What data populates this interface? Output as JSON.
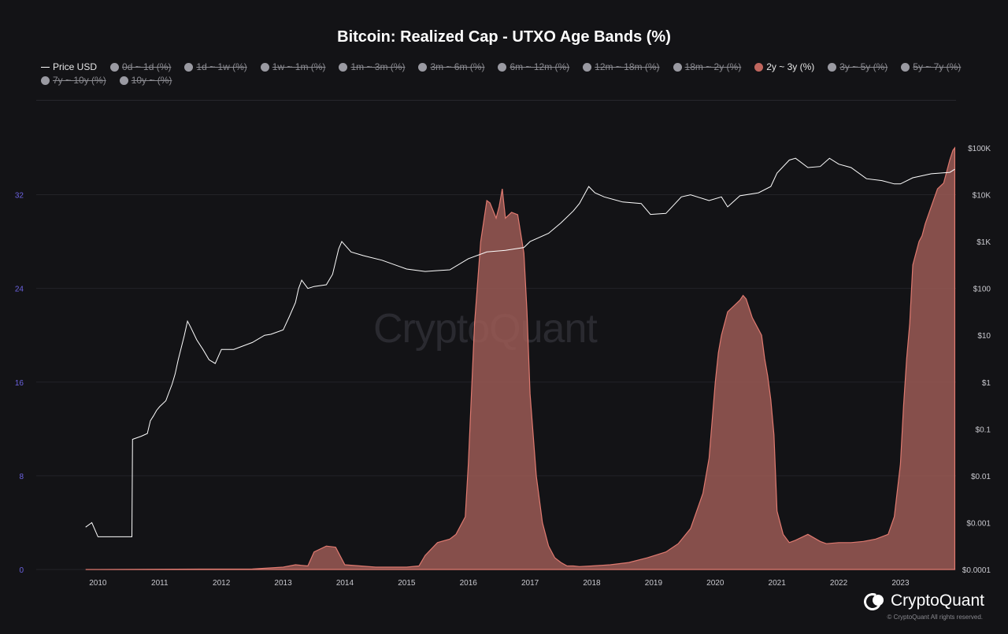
{
  "title": "Bitcoin: Realized Cap - UTXO Age Bands (%)",
  "legend": [
    {
      "label": "Price USD",
      "kind": "line",
      "active": true
    },
    {
      "label": "0d ~ 1d (%)",
      "active": false
    },
    {
      "label": "1d ~ 1w (%)",
      "active": false
    },
    {
      "label": "1w ~ 1m (%)",
      "active": false
    },
    {
      "label": "1m ~ 3m (%)",
      "active": false
    },
    {
      "label": "3m ~ 6m (%)",
      "active": false
    },
    {
      "label": "6m ~ 12m (%)",
      "active": false
    },
    {
      "label": "12m ~ 18m (%)",
      "active": false
    },
    {
      "label": "18m ~ 2y (%)",
      "active": false
    },
    {
      "label": "2y ~ 3y (%)",
      "active": true,
      "color": "#c0665e"
    },
    {
      "label": "3y ~ 5y (%)",
      "active": false
    },
    {
      "label": "5y ~ 7y (%)",
      "active": false
    },
    {
      "label": "7y ~ 10y (%)",
      "active": false
    },
    {
      "label": "10y ~ (%)",
      "active": false
    }
  ],
  "watermark": "CryptoQuant",
  "brand": {
    "name": "CryptoQuant",
    "copyright": "© CryptoQuant All rights reserved."
  },
  "colors": {
    "band_fill": "#9b5a55",
    "band_stroke": "#e07a70",
    "price_line": "#ffffff",
    "left_axis": "#6b62e0",
    "grid": "#232328"
  },
  "chart_data": {
    "type": "area",
    "title": "Bitcoin: Realized Cap - UTXO Age Bands (%)",
    "x_ticks": [
      "2010",
      "2011",
      "2012",
      "2013",
      "2014",
      "2015",
      "2016",
      "2017",
      "2018",
      "2019",
      "2020",
      "2021",
      "2022",
      "2023"
    ],
    "y_left": {
      "ticks": [
        0,
        8,
        16,
        24,
        32
      ],
      "range": [
        0,
        36
      ]
    },
    "y_right": {
      "scale": "log",
      "ticks": [
        "$0.0001",
        "$0.001",
        "$0.01",
        "$0.1",
        "$1",
        "$10",
        "$100",
        "$1K",
        "$10K",
        "$100K"
      ],
      "range": [
        0.0001,
        100000
      ]
    },
    "grid": true,
    "legend_position": "top-left",
    "series": [
      {
        "name": "2y ~ 3y (%)",
        "axis": "left",
        "x": [
          2009.8,
          2012.5,
          2013.0,
          2013.2,
          2013.4,
          2013.5,
          2013.7,
          2013.85,
          2014.0,
          2014.5,
          2015.0,
          2015.2,
          2015.3,
          2015.5,
          2015.7,
          2015.8,
          2015.95,
          2016.0,
          2016.1,
          2016.2,
          2016.3,
          2016.35,
          2016.45,
          2016.5,
          2016.55,
          2016.6,
          2016.7,
          2016.8,
          2016.9,
          2016.95,
          2017.0,
          2017.1,
          2017.2,
          2017.3,
          2017.4,
          2017.5,
          2017.6,
          2017.7,
          2017.8,
          2018.0,
          2018.3,
          2018.6,
          2018.9,
          2019.2,
          2019.4,
          2019.6,
          2019.8,
          2019.9,
          2020.0,
          2020.05,
          2020.1,
          2020.2,
          2020.3,
          2020.4,
          2020.45,
          2020.5,
          2020.6,
          2020.7,
          2020.75,
          2020.8,
          2020.85,
          2020.9,
          2020.95,
          2021.0,
          2021.1,
          2021.2,
          2021.3,
          2021.5,
          2021.6,
          2021.7,
          2021.8,
          2022.0,
          2022.2,
          2022.4,
          2022.6,
          2022.8,
          2022.9,
          2023.0,
          2023.05,
          2023.1,
          2023.15,
          2023.2,
          2023.3,
          2023.35,
          2023.4,
          2023.5,
          2023.6,
          2023.7,
          2023.8,
          2023.85,
          2023.88
        ],
        "y": [
          0,
          0.05,
          0.2,
          0.4,
          0.3,
          1.5,
          2.0,
          1.9,
          0.4,
          0.2,
          0.2,
          0.3,
          1.2,
          2.3,
          2.6,
          3.0,
          4.5,
          9.0,
          21.0,
          28.0,
          31.5,
          31.3,
          30.0,
          31.0,
          32.5,
          30.0,
          30.5,
          30.3,
          27.0,
          22.0,
          15.0,
          8.0,
          4.0,
          2.0,
          1.0,
          0.6,
          0.3,
          0.3,
          0.25,
          0.3,
          0.4,
          0.6,
          1.0,
          1.5,
          2.2,
          3.5,
          6.5,
          9.5,
          16.0,
          18.5,
          20.0,
          22.0,
          22.5,
          23.0,
          23.4,
          23.1,
          21.5,
          20.5,
          20.0,
          18.0,
          16.5,
          14.5,
          11.5,
          5.0,
          3.0,
          2.3,
          2.5,
          3.0,
          2.7,
          2.4,
          2.2,
          2.3,
          2.3,
          2.4,
          2.6,
          3.0,
          4.5,
          9.0,
          14.0,
          18.0,
          21.0,
          26.0,
          28.0,
          28.5,
          29.5,
          31.0,
          32.5,
          33.0,
          35.0,
          35.8,
          36.0
        ]
      },
      {
        "name": "Price USD",
        "axis": "right",
        "x": [
          2009.8,
          2009.9,
          2010.0,
          2010.55,
          2010.56,
          2010.7,
          2010.8,
          2010.85,
          2010.9,
          2010.95,
          2011.0,
          2011.1,
          2011.15,
          2011.2,
          2011.25,
          2011.3,
          2011.4,
          2011.45,
          2011.5,
          2011.6,
          2011.7,
          2011.8,
          2011.9,
          2012.0,
          2012.2,
          2012.5,
          2012.7,
          2012.8,
          2013.0,
          2013.1,
          2013.2,
          2013.25,
          2013.3,
          2013.4,
          2013.5,
          2013.7,
          2013.8,
          2013.9,
          2013.95,
          2014.1,
          2014.3,
          2014.6,
          2015.0,
          2015.3,
          2015.5,
          2015.7,
          2016.0,
          2016.3,
          2016.6,
          2016.9,
          2017.0,
          2017.3,
          2017.5,
          2017.7,
          2017.8,
          2017.95,
          2018.05,
          2018.2,
          2018.5,
          2018.8,
          2018.95,
          2019.2,
          2019.45,
          2019.6,
          2019.9,
          2020.1,
          2020.2,
          2020.4,
          2020.7,
          2020.9,
          2021.0,
          2021.2,
          2021.3,
          2021.5,
          2021.7,
          2021.85,
          2022.0,
          2022.2,
          2022.45,
          2022.7,
          2022.9,
          2023.0,
          2023.2,
          2023.5,
          2023.8,
          2023.88
        ],
        "y": [
          0.0008,
          0.001,
          0.0005,
          0.0005,
          0.06,
          0.07,
          0.08,
          0.15,
          0.19,
          0.25,
          0.3,
          0.4,
          0.6,
          0.9,
          1.5,
          3,
          10,
          20,
          15,
          8,
          5,
          3,
          2.5,
          5,
          5,
          7,
          10,
          10.5,
          13,
          25,
          50,
          100,
          150,
          100,
          110,
          120,
          200,
          700,
          1000,
          600,
          500,
          400,
          260,
          230,
          240,
          250,
          430,
          600,
          650,
          750,
          1000,
          1500,
          2500,
          4500,
          6500,
          15000,
          11000,
          9000,
          7000,
          6500,
          3800,
          4000,
          9000,
          10000,
          7500,
          9000,
          5500,
          9500,
          11000,
          15000,
          29000,
          55000,
          60000,
          38000,
          40000,
          60000,
          45000,
          38000,
          22000,
          20000,
          17000,
          17000,
          23000,
          28000,
          30000,
          35000
        ]
      }
    ]
  }
}
